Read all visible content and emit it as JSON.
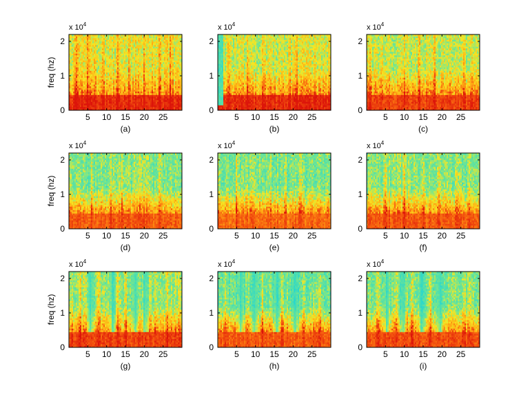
{
  "figure": {
    "ylabel_text": "freq (hz)",
    "exponent_base": "x 10",
    "exponent_power": "4"
  },
  "colors": {
    "low": "#2fdcc8",
    "mid": "#f5e51e",
    "high": "#ea1a08",
    "frame": "#000000"
  },
  "chart_data": [
    {
      "type": "heatmap",
      "caption": "(a)",
      "xlabel": "",
      "ylabel": "freq (hz)",
      "xlim": [
        0,
        30
      ],
      "ylim": [
        0,
        2.2
      ],
      "x_ticks": [
        5,
        10,
        15,
        20,
        25
      ],
      "x_tick_labels": [
        "5",
        "10",
        "15",
        "20",
        "25"
      ],
      "y_ticks": [
        0,
        1,
        2
      ],
      "y_tick_labels": [
        "0",
        "1",
        "2"
      ],
      "y_scale_label": "x 10^4",
      "colormap": "jet",
      "low_band_energy": 0.95,
      "high_band_energy": 0.5,
      "onset_delay": 0,
      "strong_columns": [
        2,
        5,
        9,
        13,
        16,
        20,
        24,
        27
      ]
    },
    {
      "type": "heatmap",
      "caption": "(b)",
      "xlabel": "",
      "ylabel": "",
      "xlim": [
        0,
        30
      ],
      "ylim": [
        0,
        2.2
      ],
      "x_ticks": [
        5,
        10,
        15,
        20,
        25
      ],
      "x_tick_labels": [
        "5",
        "10",
        "15",
        "20",
        "25"
      ],
      "y_ticks": [
        0,
        1,
        2
      ],
      "y_tick_labels": [
        "0",
        "1",
        "2"
      ],
      "y_scale_label": "x 10^4",
      "colormap": "jet",
      "low_band_energy": 0.95,
      "high_band_energy": 0.45,
      "onset_delay": 1.6,
      "strong_columns": [
        3,
        8,
        12,
        14,
        19,
        21,
        26
      ]
    },
    {
      "type": "heatmap",
      "caption": "(c)",
      "xlabel": "",
      "ylabel": "",
      "xlim": [
        0,
        30
      ],
      "ylim": [
        0,
        2.2
      ],
      "x_ticks": [
        5,
        10,
        15,
        20,
        25
      ],
      "x_tick_labels": [
        "5",
        "10",
        "15",
        "20",
        "25"
      ],
      "y_ticks": [
        0,
        1,
        2
      ],
      "y_tick_labels": [
        "0",
        "1",
        "2"
      ],
      "y_scale_label": "x 10^4",
      "colormap": "jet",
      "low_band_energy": 0.9,
      "high_band_energy": 0.42,
      "onset_delay": 0,
      "strong_columns": [
        1,
        6,
        10,
        14,
        18,
        22,
        26,
        28
      ]
    },
    {
      "type": "heatmap",
      "caption": "(d)",
      "xlabel": "",
      "ylabel": "freq (hz)",
      "xlim": [
        0,
        30
      ],
      "ylim": [
        0,
        2.2
      ],
      "x_ticks": [
        5,
        10,
        15,
        20,
        25
      ],
      "x_tick_labels": [
        "5",
        "10",
        "15",
        "20",
        "25"
      ],
      "y_ticks": [
        0,
        1,
        2
      ],
      "y_tick_labels": [
        "0",
        "1",
        "2"
      ],
      "y_scale_label": "x 10^4",
      "colormap": "jet",
      "low_band_energy": 0.85,
      "high_band_energy": 0.3,
      "onset_delay": 0,
      "strong_columns": [
        6,
        11,
        14,
        19,
        20,
        24
      ]
    },
    {
      "type": "heatmap",
      "caption": "(e)",
      "xlabel": "",
      "ylabel": "",
      "xlim": [
        0,
        30
      ],
      "ylim": [
        0,
        2.2
      ],
      "x_ticks": [
        5,
        10,
        15,
        20,
        25
      ],
      "x_tick_labels": [
        "5",
        "10",
        "15",
        "20",
        "25"
      ],
      "y_ticks": [
        0,
        1,
        2
      ],
      "y_tick_labels": [
        "0",
        "1",
        "2"
      ],
      "y_scale_label": "x 10^4",
      "colormap": "jet",
      "low_band_energy": 0.82,
      "high_band_energy": 0.28,
      "onset_delay": 0,
      "strong_columns": [
        5,
        9,
        14,
        18,
        22,
        25
      ]
    },
    {
      "type": "heatmap",
      "caption": "(f)",
      "xlabel": "",
      "ylabel": "",
      "xlim": [
        0,
        30
      ],
      "ylim": [
        0,
        2.2
      ],
      "x_ticks": [
        5,
        10,
        15,
        20,
        25
      ],
      "x_tick_labels": [
        "5",
        "10",
        "15",
        "20",
        "25"
      ],
      "y_ticks": [
        0,
        1,
        2
      ],
      "y_tick_labels": [
        "0",
        "1",
        "2"
      ],
      "y_scale_label": "x 10^4",
      "colormap": "jet",
      "low_band_energy": 0.85,
      "high_band_energy": 0.3,
      "onset_delay": 0,
      "strong_columns": [
        1,
        5,
        10,
        15,
        19,
        24,
        27
      ]
    },
    {
      "type": "heatmap",
      "caption": "(g)",
      "xlabel": "",
      "ylabel": "freq (hz)",
      "xlim": [
        0,
        30
      ],
      "ylim": [
        0,
        2.2
      ],
      "x_ticks": [
        5,
        10,
        15,
        20,
        25
      ],
      "x_tick_labels": [
        "5",
        "10",
        "15",
        "20",
        "25"
      ],
      "y_ticks": [
        0,
        1,
        2
      ],
      "y_tick_labels": [
        "0",
        "1",
        "2"
      ],
      "y_scale_label": "x 10^4",
      "colormap": "jet",
      "low_band_energy": 0.9,
      "high_band_energy": 0.35,
      "onset_delay": 0,
      "quiet_gaps": [
        5.8,
        11.6,
        17.6,
        20.3
      ],
      "strong_columns": [
        3,
        8,
        13,
        15,
        23,
        26
      ]
    },
    {
      "type": "heatmap",
      "caption": "(h)",
      "xlabel": "",
      "ylabel": "",
      "xlim": [
        0,
        30
      ],
      "ylim": [
        0,
        2.2
      ],
      "x_ticks": [
        5,
        10,
        15,
        20,
        25
      ],
      "x_tick_labels": [
        "5",
        "10",
        "15",
        "20",
        "25"
      ],
      "y_ticks": [
        0,
        1,
        2
      ],
      "y_tick_labels": [
        "0",
        "1",
        "2"
      ],
      "y_scale_label": "x 10^4",
      "colormap": "jet",
      "low_band_energy": 0.85,
      "high_band_energy": 0.25,
      "onset_delay": 0,
      "quiet_gaps": [
        6.2,
        9.9,
        15.6,
        20.6
      ],
      "strong_columns": [
        2,
        8,
        12,
        17,
        23,
        27
      ]
    },
    {
      "type": "heatmap",
      "caption": "(i)",
      "xlabel": "",
      "ylabel": "",
      "xlim": [
        0,
        30
      ],
      "ylim": [
        0,
        2.2
      ],
      "x_ticks": [
        5,
        10,
        15,
        20,
        25
      ],
      "x_tick_labels": [
        "5",
        "10",
        "15",
        "20",
        "25"
      ],
      "y_ticks": [
        0,
        1,
        2
      ],
      "y_tick_labels": [
        "0",
        "1",
        "2"
      ],
      "y_scale_label": "x 10^4",
      "colormap": "jet",
      "low_band_energy": 0.88,
      "high_band_energy": 0.3,
      "onset_delay": 0,
      "quiet_gaps": [
        5.4,
        9.6,
        14.6,
        19.3
      ],
      "strong_columns": [
        3,
        8,
        12,
        17,
        23,
        26
      ]
    }
  ]
}
